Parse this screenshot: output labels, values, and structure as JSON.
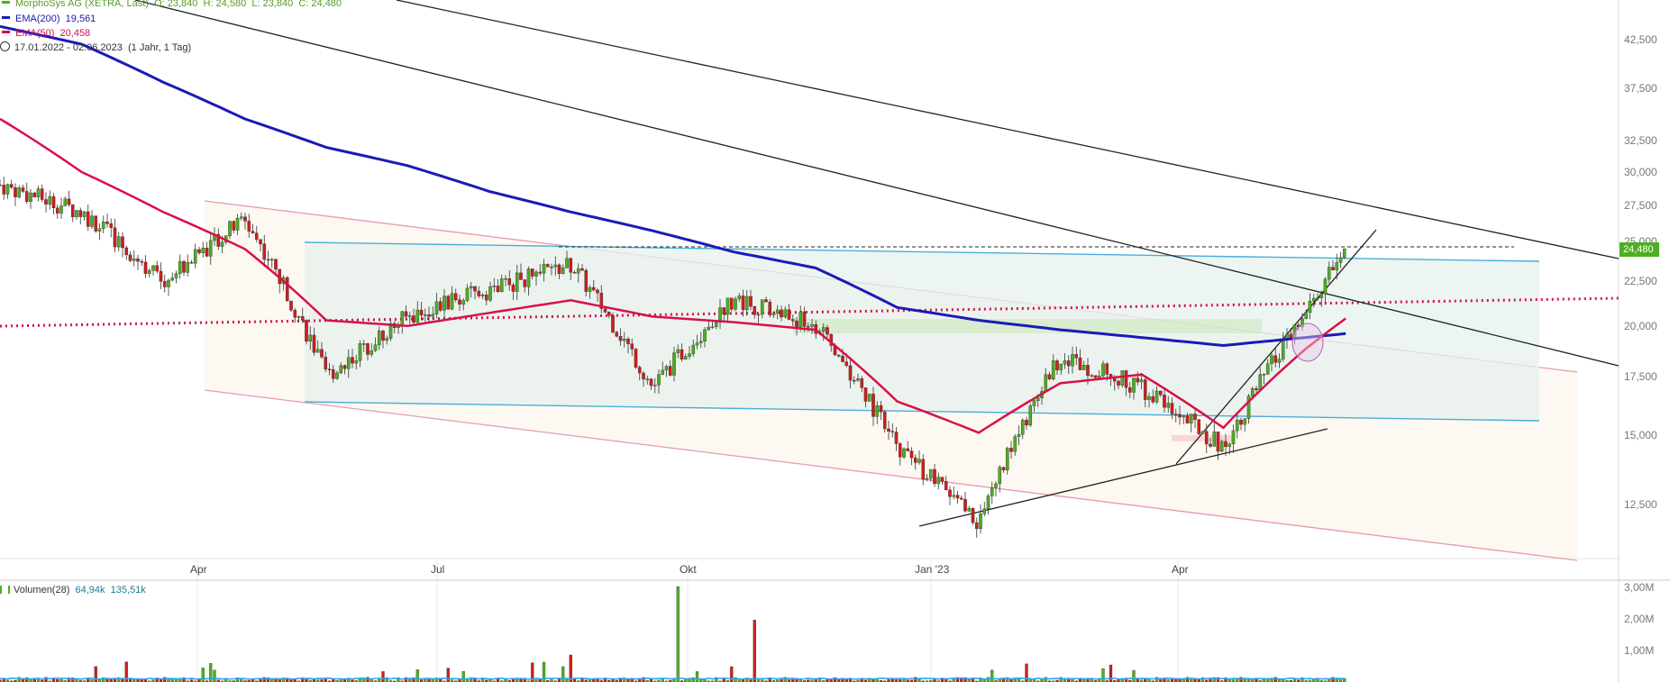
{
  "chart_data": [
    {
      "type": "candlestick",
      "title": "MorphoSys AG (XETRA, Last)",
      "ohlc_last": {
        "O": "23,840",
        "H": "24,580",
        "L": "23,840",
        "C": "24,480"
      },
      "date_range": "17.01.2022 - 02.06.2023",
      "interval": "(1 Jahr, 1 Tag)",
      "last_price": "24,480",
      "x_tick_labels": [
        "Apr",
        "Jul",
        "Okt",
        "Jan '23",
        "Apr"
      ],
      "y_tick_labels": [
        "42,500",
        "37,500",
        "32,500",
        "30,000",
        "27,500",
        "25,000",
        "22,500",
        "20,000",
        "17,500",
        "15,000",
        "12,500"
      ],
      "y_scale": "log",
      "legend_placement": "top-left",
      "grid": false,
      "series": [
        {
          "name": "EMA(200)",
          "value_label": "19,561",
          "color": "#1a1ab8",
          "monthly": [
            [
              0,
              44.0
            ],
            [
              1,
              42.0
            ],
            [
              2,
              38.0
            ],
            [
              3,
              34.5
            ],
            [
              4,
              32.0
            ],
            [
              5,
              30.5
            ],
            [
              6,
              28.5
            ],
            [
              7,
              27.0
            ],
            [
              8,
              25.7
            ],
            [
              9,
              24.3
            ],
            [
              10,
              23.3
            ],
            [
              11,
              21.0
            ],
            [
              12,
              20.3
            ],
            [
              13,
              19.8
            ],
            [
              14,
              19.4
            ],
            [
              15,
              19.0
            ],
            [
              16,
              19.4
            ],
            [
              16.5,
              19.6
            ]
          ]
        },
        {
          "name": "EMA(50)",
          "value_label": "20,458",
          "color": "#d8104c",
          "monthly": [
            [
              0,
              34.5
            ],
            [
              1,
              30.0
            ],
            [
              2,
              27.0
            ],
            [
              3,
              24.5
            ],
            [
              4,
              20.3
            ],
            [
              5,
              20.0
            ],
            [
              6,
              20.7
            ],
            [
              7,
              21.4
            ],
            [
              8,
              20.5
            ],
            [
              9,
              20.2
            ],
            [
              10,
              19.8
            ],
            [
              11,
              16.4
            ],
            [
              12,
              15.1
            ],
            [
              13,
              17.2
            ],
            [
              14,
              17.6
            ],
            [
              15,
              15.3
            ],
            [
              16,
              18.8
            ],
            [
              16.5,
              20.4
            ]
          ]
        },
        {
          "name": "Kurs",
          "color_up": "#4caf1f",
          "color_down": "#d01c1c",
          "monthly_close": [
            [
              0,
              29.0
            ],
            [
              1,
              27.0
            ],
            [
              2,
              22.5
            ],
            [
              3,
              26.5
            ],
            [
              4,
              17.5
            ],
            [
              5,
              20.5
            ],
            [
              6,
              22.0
            ],
            [
              7,
              23.5
            ],
            [
              8,
              17.0
            ],
            [
              9,
              21.5
            ],
            [
              10,
              20.0
            ],
            [
              11,
              14.5
            ],
            [
              12,
              11.9
            ],
            [
              13,
              18.5
            ],
            [
              14,
              17.0
            ],
            [
              15,
              14.5
            ],
            [
              16,
              20.5
            ],
            [
              16.5,
              24.48
            ]
          ]
        }
      ],
      "volume": {
        "name": "Volumen(28)",
        "v1": "64,94k",
        "v2": "135,51k",
        "y_tick_labels": [
          "3,00M",
          "2,00M",
          "1,00M"
        ]
      }
    }
  ],
  "legend": {
    "title": "MorphoSys AG (XETRA, Last)",
    "o": "O: 23,840",
    "h": "H: 24,580",
    "l": "L: 23,840",
    "c": "C: 24,480",
    "ema200_name": "EMA(200)",
    "ema200_val": "19,561",
    "ema50_name": "EMA(50)",
    "ema50_val": "20,458",
    "range": "17.01.2022 - 02.06.2023",
    "range_info": "(1 Jahr, 1 Tag)"
  },
  "colors": {
    "up": "#4caf1f",
    "down": "#d01c1c",
    "ema200": "#1a1ab8",
    "ema50": "#d8104c",
    "channel": "#e07a9a",
    "band": "#3aa6d8"
  }
}
